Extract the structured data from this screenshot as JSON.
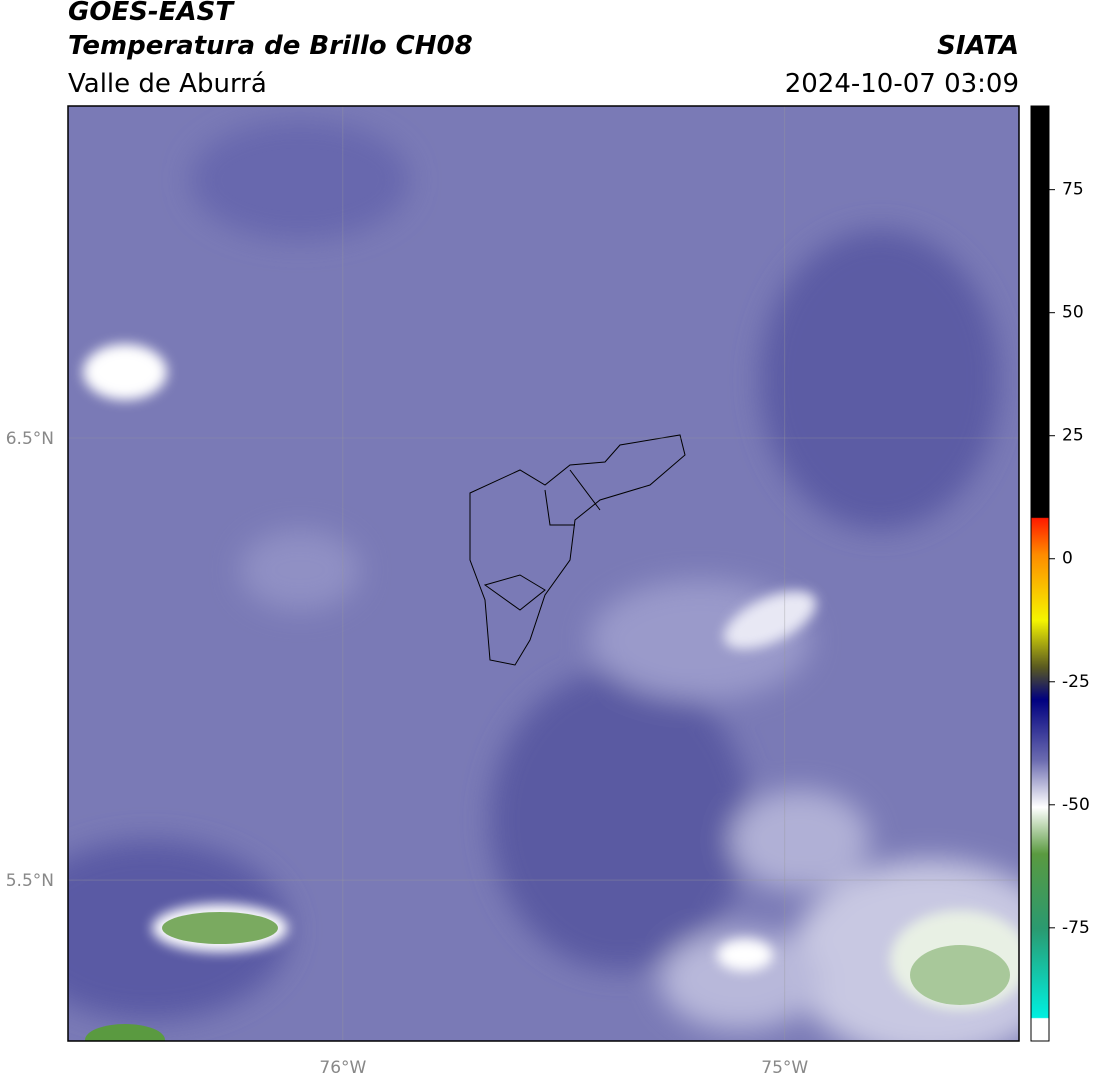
{
  "header": {
    "title": "GOES-EAST",
    "subtitle": "Temperatura de Brillo CH08",
    "region": "Valle de Aburrá",
    "source": "SIATA",
    "datetime": "2024-10-07 03:09"
  },
  "map": {
    "lonlim": [
      -76.622,
      -74.47
    ],
    "latlim": [
      5.136,
      7.251
    ],
    "lon_ticks": [
      {
        "value": -76,
        "label": "76°W"
      },
      {
        "value": -75,
        "label": "75°W"
      }
    ],
    "lat_ticks": [
      {
        "value": 6.5,
        "label": "6.5°N"
      },
      {
        "value": 5.5,
        "label": "5.5°N"
      }
    ]
  },
  "colorbar": {
    "range": [
      -98,
      92
    ],
    "ticks": [
      75,
      50,
      25,
      0,
      -25,
      -50,
      -75
    ]
  }
}
